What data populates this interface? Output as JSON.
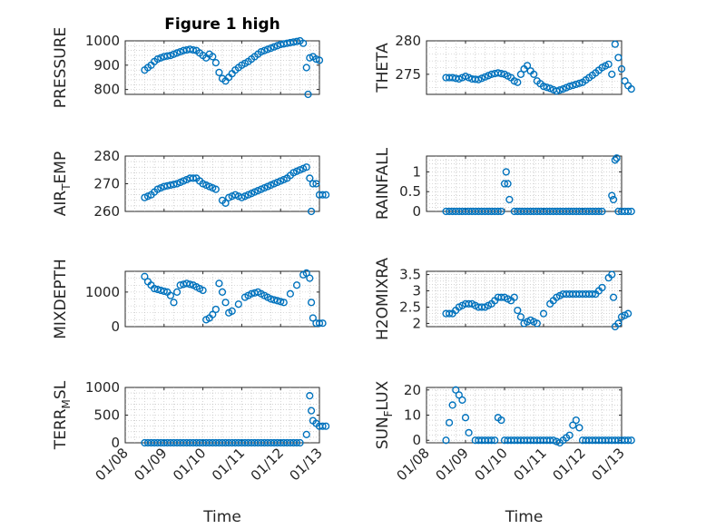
{
  "chart_data": [
    {
      "type": "scatter",
      "title": "Figure 1 high",
      "ylabel": "PRESSURE",
      "xlabel": "",
      "xlim": [
        "01/08",
        "01/13"
      ],
      "ylim": [
        780,
        1000
      ],
      "yticks": [
        "800",
        "900",
        "1000"
      ],
      "xticks": [
        "01/08",
        "01/09",
        "01/10",
        "01/11",
        "01/12",
        "01/13"
      ],
      "grid": true,
      "show_xticks": false,
      "points": [
        [
          "01/08 12:00",
          880
        ],
        [
          "01/08 14:00",
          890
        ],
        [
          "01/08 16:00",
          900
        ],
        [
          "01/08 18:00",
          915
        ],
        [
          "01/08 20:00",
          925
        ],
        [
          "01/09 00:00",
          935
        ],
        [
          "01/09 04:00",
          940
        ],
        [
          "01/09 08:00",
          950
        ],
        [
          "01/09 12:00",
          960
        ],
        [
          "01/09 16:00",
          965
        ],
        [
          "01/09 20:00",
          960
        ],
        [
          "01/09 22:00",
          950
        ],
        [
          "01/10 00:00",
          940
        ],
        [
          "01/10 02:00",
          930
        ],
        [
          "01/10 04:00",
          945
        ],
        [
          "01/10 06:00",
          935
        ],
        [
          "01/10 08:00",
          910
        ],
        [
          "01/10 10:00",
          870
        ],
        [
          "01/10 12:00",
          845
        ],
        [
          "01/10 14:00",
          835
        ],
        [
          "01/10 16:00",
          850
        ],
        [
          "01/10 18:00",
          865
        ],
        [
          "01/10 20:00",
          880
        ],
        [
          "01/11 00:00",
          900
        ],
        [
          "01/11 04:00",
          915
        ],
        [
          "01/11 08:00",
          935
        ],
        [
          "01/11 12:00",
          955
        ],
        [
          "01/11 16:00",
          965
        ],
        [
          "01/11 20:00",
          975
        ],
        [
          "01/12 00:00",
          985
        ],
        [
          "01/12 04:00",
          990
        ],
        [
          "01/12 08:00",
          995
        ],
        [
          "01/12 12:00",
          1000
        ],
        [
          "01/12 14:00",
          990
        ],
        [
          "01/12 16:00",
          890
        ],
        [
          "01/12 17:00",
          780
        ],
        [
          "01/12 18:00",
          930
        ],
        [
          "01/12 20:00",
          935
        ],
        [
          "01/12 22:00",
          925
        ],
        [
          "01/13 00:00",
          920
        ]
      ]
    },
    {
      "type": "scatter",
      "title": "",
      "ylabel": "THETA",
      "xlabel": "",
      "xlim": [
        "01/08",
        "01/13"
      ],
      "ylim": [
        272,
        280
      ],
      "yticks": [
        "275",
        "280"
      ],
      "xticks": [
        "01/08",
        "01/09",
        "01/10",
        "01/11",
        "01/12",
        "01/13"
      ],
      "grid": true,
      "show_xticks": false,
      "points": [
        [
          "01/08 12:00",
          274.5
        ],
        [
          "01/08 16:00",
          274.5
        ],
        [
          "01/08 20:00",
          274.3
        ],
        [
          "01/09 00:00",
          274.7
        ],
        [
          "01/09 04:00",
          274.3
        ],
        [
          "01/09 08:00",
          274.2
        ],
        [
          "01/09 12:00",
          274.6
        ],
        [
          "01/09 16:00",
          275.0
        ],
        [
          "01/09 20:00",
          275.2
        ],
        [
          "01/10 00:00",
          275.0
        ],
        [
          "01/10 04:00",
          274.5
        ],
        [
          "01/10 06:00",
          274.0
        ],
        [
          "01/10 08:00",
          273.8
        ],
        [
          "01/10 10:00",
          275.0
        ],
        [
          "01/10 12:00",
          275.8
        ],
        [
          "01/10 14:00",
          276.3
        ],
        [
          "01/10 16:00",
          275.5
        ],
        [
          "01/10 18:00",
          275.0
        ],
        [
          "01/10 20:00",
          274.0
        ],
        [
          "01/11 00:00",
          273.2
        ],
        [
          "01/11 04:00",
          272.9
        ],
        [
          "01/11 08:00",
          272.5
        ],
        [
          "01/11 12:00",
          272.8
        ],
        [
          "01/11 16:00",
          273.2
        ],
        [
          "01/11 20:00",
          273.5
        ],
        [
          "01/12 00:00",
          273.8
        ],
        [
          "01/12 04:00",
          274.5
        ],
        [
          "01/12 08:00",
          275.2
        ],
        [
          "01/12 12:00",
          276.0
        ],
        [
          "01/12 16:00",
          276.5
        ],
        [
          "01/12 18:00",
          275.0
        ],
        [
          "01/12 20:00",
          279.5
        ],
        [
          "01/12 22:00",
          277.5
        ],
        [
          "01/13 00:00",
          275.8
        ],
        [
          "01/13 02:00",
          274.0
        ],
        [
          "01/13 04:00",
          273.3
        ],
        [
          "01/13 06:00",
          272.8
        ]
      ]
    },
    {
      "type": "scatter",
      "title": "",
      "ylabel": "AIR_TEMP",
      "xlabel": "",
      "xlim": [
        "01/08",
        "01/13"
      ],
      "ylim": [
        260,
        280
      ],
      "yticks": [
        "260",
        "270",
        "280"
      ],
      "xticks": [
        "01/08",
        "01/09",
        "01/10",
        "01/11",
        "01/12",
        "01/13"
      ],
      "grid": true,
      "show_xticks": false,
      "points": [
        [
          "01/08 12:00",
          265
        ],
        [
          "01/08 16:00",
          266
        ],
        [
          "01/08 20:00",
          268
        ],
        [
          "01/09 00:00",
          269
        ],
        [
          "01/09 04:00",
          269.5
        ],
        [
          "01/09 08:00",
          270
        ],
        [
          "01/09 12:00",
          271
        ],
        [
          "01/09 16:00",
          272
        ],
        [
          "01/09 20:00",
          272
        ],
        [
          "01/10 00:00",
          270
        ],
        [
          "01/10 04:00",
          269
        ],
        [
          "01/10 08:00",
          268
        ],
        [
          "01/10 12:00",
          264
        ],
        [
          "01/10 14:00",
          263
        ],
        [
          "01/10 16:00",
          265
        ],
        [
          "01/10 20:00",
          266
        ],
        [
          "01/11 00:00",
          265
        ],
        [
          "01/11 04:00",
          266
        ],
        [
          "01/11 08:00",
          267
        ],
        [
          "01/11 12:00",
          268
        ],
        [
          "01/11 16:00",
          269
        ],
        [
          "01/11 20:00",
          270
        ],
        [
          "01/12 00:00",
          271
        ],
        [
          "01/12 04:00",
          272
        ],
        [
          "01/12 08:00",
          274
        ],
        [
          "01/12 12:00",
          275
        ],
        [
          "01/12 16:00",
          276
        ],
        [
          "01/12 18:00",
          272
        ],
        [
          "01/12 19:00",
          260
        ],
        [
          "01/12 20:00",
          270
        ],
        [
          "01/12 22:00",
          270
        ],
        [
          "01/13 00:00",
          266
        ],
        [
          "01/13 04:00",
          266
        ]
      ]
    },
    {
      "type": "scatter",
      "title": "",
      "ylabel": "RAINFALL",
      "xlabel": "",
      "xlim": [
        "01/08",
        "01/13"
      ],
      "ylim": [
        0,
        1.4
      ],
      "yticks": [
        "0",
        "0.5",
        "1"
      ],
      "xticks": [
        "01/08",
        "01/09",
        "01/10",
        "01/11",
        "01/12",
        "01/13"
      ],
      "grid": true,
      "show_xticks": false,
      "points": [
        [
          "01/08 12:00",
          0
        ],
        [
          "01/08 18:00",
          0
        ],
        [
          "01/09 00:00",
          0
        ],
        [
          "01/09 06:00",
          0
        ],
        [
          "01/09 12:00",
          0
        ],
        [
          "01/09 18:00",
          0
        ],
        [
          "01/09 22:00",
          0
        ],
        [
          "01/10 00:00",
          0.7
        ],
        [
          "01/10 01:00",
          1.0
        ],
        [
          "01/10 02:00",
          0.7
        ],
        [
          "01/10 03:00",
          0.3
        ],
        [
          "01/10 06:00",
          0
        ],
        [
          "01/10 12:00",
          0
        ],
        [
          "01/10 18:00",
          0
        ],
        [
          "01/11 00:00",
          0
        ],
        [
          "01/11 06:00",
          0
        ],
        [
          "01/11 12:00",
          0
        ],
        [
          "01/11 18:00",
          0
        ],
        [
          "01/12 00:00",
          0
        ],
        [
          "01/12 06:00",
          0
        ],
        [
          "01/12 12:00",
          0
        ],
        [
          "01/12 18:00",
          0.4
        ],
        [
          "01/12 19:00",
          0.3
        ],
        [
          "01/12 20:00",
          1.3
        ],
        [
          "01/12 21:00",
          1.35
        ],
        [
          "01/12 22:00",
          0
        ],
        [
          "01/13 02:00",
          0
        ],
        [
          "01/13 06:00",
          0
        ]
      ]
    },
    {
      "type": "scatter",
      "title": "",
      "ylabel": "MIXDEPTH",
      "xlabel": "",
      "xlim": [
        "01/08",
        "01/13"
      ],
      "ylim": [
        0,
        1600
      ],
      "yticks": [
        "0",
        "1000"
      ],
      "xticks": [
        "01/08",
        "01/09",
        "01/10",
        "01/11",
        "01/12",
        "01/13"
      ],
      "grid": true,
      "show_xticks": false,
      "points": [
        [
          "01/08 12:00",
          1450
        ],
        [
          "01/08 14:00",
          1300
        ],
        [
          "01/08 16:00",
          1200
        ],
        [
          "01/08 18:00",
          1100
        ],
        [
          "01/08 22:00",
          1050
        ],
        [
          "01/09 02:00",
          1000
        ],
        [
          "01/09 04:00",
          900
        ],
        [
          "01/09 06:00",
          700
        ],
        [
          "01/09 08:00",
          1000
        ],
        [
          "01/09 10:00",
          1200
        ],
        [
          "01/09 14:00",
          1250
        ],
        [
          "01/09 18:00",
          1200
        ],
        [
          "01/09 22:00",
          1100
        ],
        [
          "01/10 00:00",
          1050
        ],
        [
          "01/10 02:00",
          200
        ],
        [
          "01/10 04:00",
          250
        ],
        [
          "01/10 06:00",
          350
        ],
        [
          "01/10 08:00",
          500
        ],
        [
          "01/10 10:00",
          1250
        ],
        [
          "01/10 12:00",
          1000
        ],
        [
          "01/10 14:00",
          700
        ],
        [
          "01/10 16:00",
          400
        ],
        [
          "01/10 18:00",
          450
        ],
        [
          "01/10 22:00",
          650
        ],
        [
          "01/11 02:00",
          850
        ],
        [
          "01/11 06:00",
          950
        ],
        [
          "01/11 10:00",
          1000
        ],
        [
          "01/11 14:00",
          900
        ],
        [
          "01/11 18:00",
          800
        ],
        [
          "01/11 22:00",
          750
        ],
        [
          "01/12 02:00",
          700
        ],
        [
          "01/12 06:00",
          950
        ],
        [
          "01/12 10:00",
          1200
        ],
        [
          "01/12 14:00",
          1500
        ],
        [
          "01/12 16:00",
          1550
        ],
        [
          "01/12 18:00",
          1400
        ],
        [
          "01/12 19:00",
          700
        ],
        [
          "01/12 20:00",
          250
        ],
        [
          "01/12 22:00",
          100
        ],
        [
          "01/13 02:00",
          100
        ]
      ]
    },
    {
      "type": "scatter",
      "title": "",
      "ylabel": "H2OMIXRA",
      "xlabel": "",
      "xlim": [
        "01/08",
        "01/13"
      ],
      "ylim": [
        1.9,
        3.6
      ],
      "yticks": [
        "2",
        "2.5",
        "3",
        "3.5"
      ],
      "xticks": [
        "01/08",
        "01/09",
        "01/10",
        "01/11",
        "01/12",
        "01/13"
      ],
      "grid": true,
      "show_xticks": false,
      "points": [
        [
          "01/08 12:00",
          2.3
        ],
        [
          "01/08 16:00",
          2.3
        ],
        [
          "01/08 20:00",
          2.5
        ],
        [
          "01/09 00:00",
          2.6
        ],
        [
          "01/09 04:00",
          2.6
        ],
        [
          "01/09 08:00",
          2.5
        ],
        [
          "01/09 12:00",
          2.5
        ],
        [
          "01/09 16:00",
          2.6
        ],
        [
          "01/09 20:00",
          2.8
        ],
        [
          "01/10 00:00",
          2.8
        ],
        [
          "01/10 04:00",
          2.7
        ],
        [
          "01/10 06:00",
          2.8
        ],
        [
          "01/10 08:00",
          2.4
        ],
        [
          "01/10 10:00",
          2.2
        ],
        [
          "01/10 12:00",
          2.0
        ],
        [
          "01/10 16:00",
          2.1
        ],
        [
          "01/10 20:00",
          2.0
        ],
        [
          "01/11 00:00",
          2.3
        ],
        [
          "01/11 04:00",
          2.6
        ],
        [
          "01/11 08:00",
          2.8
        ],
        [
          "01/11 12:00",
          2.9
        ],
        [
          "01/11 16:00",
          2.9
        ],
        [
          "01/11 20:00",
          2.9
        ],
        [
          "01/12 00:00",
          2.9
        ],
        [
          "01/12 04:00",
          2.9
        ],
        [
          "01/12 08:00",
          2.9
        ],
        [
          "01/12 12:00",
          3.1
        ],
        [
          "01/12 16:00",
          3.4
        ],
        [
          "01/12 18:00",
          3.5
        ],
        [
          "01/12 19:00",
          2.8
        ],
        [
          "01/12 20:00",
          1.9
        ],
        [
          "01/12 22:00",
          2.0
        ],
        [
          "01/13 00:00",
          2.2
        ],
        [
          "01/13 04:00",
          2.3
        ]
      ]
    },
    {
      "type": "scatter",
      "title": "",
      "ylabel": "TERR_MSL",
      "xlabel": "Time",
      "xlim": [
        "01/08",
        "01/13"
      ],
      "ylim": [
        0,
        1000
      ],
      "yticks": [
        "0",
        "500",
        "1000"
      ],
      "xticks": [
        "01/08",
        "01/09",
        "01/10",
        "01/11",
        "01/12",
        "01/13"
      ],
      "grid": true,
      "show_xticks": true,
      "points": [
        [
          "01/08 12:00",
          0
        ],
        [
          "01/08 18:00",
          0
        ],
        [
          "01/09 00:00",
          0
        ],
        [
          "01/09 06:00",
          0
        ],
        [
          "01/09 12:00",
          0
        ],
        [
          "01/09 18:00",
          0
        ],
        [
          "01/10 00:00",
          0
        ],
        [
          "01/10 06:00",
          0
        ],
        [
          "01/10 12:00",
          0
        ],
        [
          "01/10 18:00",
          0
        ],
        [
          "01/11 00:00",
          0
        ],
        [
          "01/11 06:00",
          0
        ],
        [
          "01/11 12:00",
          0
        ],
        [
          "01/11 18:00",
          0
        ],
        [
          "01/12 00:00",
          0
        ],
        [
          "01/12 06:00",
          0
        ],
        [
          "01/12 12:00",
          0
        ],
        [
          "01/12 18:00",
          850
        ],
        [
          "01/12 19:00",
          580
        ],
        [
          "01/12 20:00",
          400
        ],
        [
          "01/12 22:00",
          350
        ],
        [
          "01/13 00:00",
          300
        ],
        [
          "01/13 04:00",
          300
        ],
        [
          "01/12 16:00",
          150
        ]
      ]
    },
    {
      "type": "scatter",
      "title": "",
      "ylabel": "SUN_FLUX",
      "xlabel": "Time",
      "xlim": [
        "01/08",
        "01/13"
      ],
      "ylim": [
        -1,
        21
      ],
      "yticks": [
        "0",
        "10",
        "20"
      ],
      "xticks": [
        "01/08",
        "01/09",
        "01/10",
        "01/11",
        "01/12",
        "01/13"
      ],
      "grid": true,
      "show_xticks": true,
      "points": [
        [
          "01/08 12:00",
          0
        ],
        [
          "01/08 14:00",
          7
        ],
        [
          "01/08 16:00",
          14
        ],
        [
          "01/08 18:00",
          20
        ],
        [
          "01/08 20:00",
          18
        ],
        [
          "01/08 22:00",
          16
        ],
        [
          "01/09 00:00",
          9
        ],
        [
          "01/09 02:00",
          3
        ],
        [
          "01/09 06:00",
          0
        ],
        [
          "01/09 12:00",
          0
        ],
        [
          "01/09 18:00",
          0
        ],
        [
          "01/10 00:00",
          0
        ],
        [
          "01/09 20:00",
          9
        ],
        [
          "01/09 22:00",
          8
        ],
        [
          "01/10 06:00",
          0
        ],
        [
          "01/10 12:00",
          0
        ],
        [
          "01/10 18:00",
          0
        ],
        [
          "01/11 00:00",
          0
        ],
        [
          "01/11 06:00",
          0
        ],
        [
          "01/11 12:00",
          0
        ],
        [
          "01/11 16:00",
          2
        ],
        [
          "01/11 18:00",
          6
        ],
        [
          "01/11 20:00",
          8
        ],
        [
          "01/11 22:00",
          5
        ],
        [
          "01/12 00:00",
          0
        ],
        [
          "01/12 06:00",
          0
        ],
        [
          "01/12 12:00",
          0
        ],
        [
          "01/12 18:00",
          0
        ],
        [
          "01/13 00:00",
          0
        ],
        [
          "01/13 06:00",
          0
        ],
        [
          "01/11 10:00",
          -1
        ]
      ]
    }
  ]
}
